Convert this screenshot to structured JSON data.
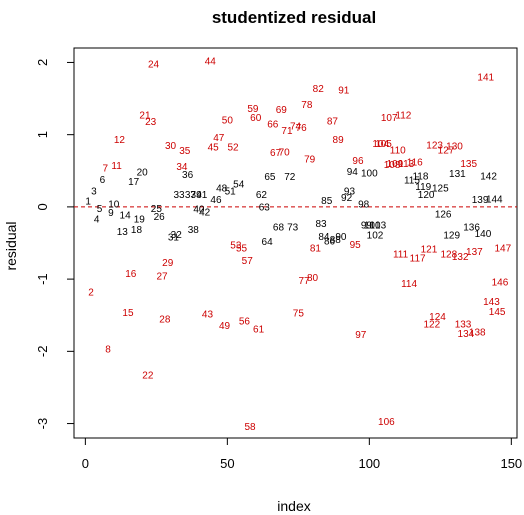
{
  "chart_data": {
    "type": "scatter",
    "title": "studentized residual",
    "xlabel": "index",
    "ylabel": "residual",
    "xlim": [
      -4,
      152
    ],
    "ylim": [
      -3.2,
      2.2
    ],
    "xticks": [
      0,
      50,
      100,
      150
    ],
    "yticks": [
      -3,
      -2,
      -1,
      0,
      1,
      2
    ],
    "grid": false,
    "reference_line": {
      "y": 0,
      "style": "dashed",
      "color": "#cc0000"
    },
    "colors": {
      "inlier": "#000000",
      "outlier": "#cc0000"
    },
    "points": [
      [
        1,
        0.08
      ],
      [
        2,
        -1.18
      ],
      [
        3,
        0.22
      ],
      [
        4,
        -0.17
      ],
      [
        5,
        -0.02
      ],
      [
        6,
        0.38
      ],
      [
        7,
        0.54
      ],
      [
        8,
        -1.97
      ],
      [
        9,
        -0.08
      ],
      [
        10,
        0.04
      ],
      [
        11,
        0.57
      ],
      [
        12,
        0.93
      ],
      [
        13,
        -0.34
      ],
      [
        14,
        -0.11
      ],
      [
        15,
        -1.46
      ],
      [
        16,
        -0.92
      ],
      [
        17,
        0.35
      ],
      [
        18,
        -0.31
      ],
      [
        19,
        -0.17
      ],
      [
        20,
        0.48
      ],
      [
        21,
        1.27
      ],
      [
        22,
        -2.33
      ],
      [
        23,
        1.18
      ],
      [
        24,
        1.98
      ],
      [
        25,
        -0.02
      ],
      [
        26,
        -0.13
      ],
      [
        27,
        -0.96
      ],
      [
        28,
        -1.55
      ],
      [
        29,
        -0.77
      ],
      [
        30,
        0.85
      ],
      [
        31,
        -0.42
      ],
      [
        32,
        -0.38
      ],
      [
        33,
        0.17
      ],
      [
        34,
        0.56
      ],
      [
        35,
        0.78
      ],
      [
        36,
        0.45
      ],
      [
        37,
        0.17
      ],
      [
        38,
        -0.31
      ],
      [
        39,
        0.17
      ],
      [
        40,
        -0.03
      ],
      [
        41,
        0.17
      ],
      [
        42,
        -0.07
      ],
      [
        43,
        -1.48
      ],
      [
        44,
        2.02
      ],
      [
        45,
        0.83
      ],
      [
        46,
        0.1
      ],
      [
        47,
        0.96
      ],
      [
        48,
        0.26
      ],
      [
        49,
        -1.64
      ],
      [
        50,
        1.2
      ],
      [
        51,
        0.22
      ],
      [
        52,
        0.83
      ],
      [
        53,
        -0.53
      ],
      [
        54,
        0.32
      ],
      [
        55,
        -0.57
      ],
      [
        56,
        -1.58
      ],
      [
        57,
        -0.74
      ],
      [
        58,
        -3.04
      ],
      [
        59,
        1.36
      ],
      [
        60,
        1.24
      ],
      [
        61,
        -1.69
      ],
      [
        62,
        0.17
      ],
      [
        63,
        0
      ],
      [
        64,
        -0.48
      ],
      [
        65,
        0.42
      ],
      [
        66,
        1.15
      ],
      [
        67,
        0.75
      ],
      [
        68,
        -0.28
      ],
      [
        69,
        1.35
      ],
      [
        70,
        0.76
      ],
      [
        71,
        1.06
      ],
      [
        72,
        0.42
      ],
      [
        73,
        -0.28
      ],
      [
        74,
        1.12
      ],
      [
        75,
        -1.47
      ],
      [
        76,
        1.1
      ],
      [
        77,
        -1.02
      ],
      [
        78,
        1.42
      ],
      [
        79,
        0.66
      ],
      [
        80,
        -0.98
      ],
      [
        81,
        -0.57
      ],
      [
        82,
        1.64
      ],
      [
        83,
        -0.23
      ],
      [
        84,
        -0.41
      ],
      [
        85,
        0.09
      ],
      [
        86,
        -0.47
      ],
      [
        87,
        1.19
      ],
      [
        88,
        -0.45
      ],
      [
        89,
        0.93
      ],
      [
        90,
        -0.41
      ],
      [
        91,
        1.62
      ],
      [
        92,
        0.13
      ],
      [
        93,
        0.22
      ],
      [
        94,
        0.49
      ],
      [
        95,
        -0.52
      ],
      [
        96,
        0.64
      ],
      [
        97,
        -1.77
      ],
      [
        98,
        0.04
      ],
      [
        99,
        -0.25
      ],
      [
        100,
        0.47
      ],
      [
        101,
        -0.25
      ],
      [
        102,
        -0.39
      ],
      [
        103,
        -0.25
      ],
      [
        104,
        0.88
      ],
      [
        105,
        0.88
      ],
      [
        106,
        -2.97
      ],
      [
        107,
        1.24
      ],
      [
        108,
        0.59
      ],
      [
        109,
        0.6
      ],
      [
        110,
        0.79
      ],
      [
        111,
        -0.65
      ],
      [
        112,
        1.27
      ],
      [
        113,
        0.6
      ],
      [
        114,
        -1.06
      ],
      [
        115,
        0.37
      ],
      [
        116,
        0.62
      ],
      [
        117,
        -0.71
      ],
      [
        118,
        0.43
      ],
      [
        119,
        0.28
      ],
      [
        120,
        0.17
      ],
      [
        121,
        -0.58
      ],
      [
        122,
        -1.62
      ],
      [
        123,
        0.86
      ],
      [
        124,
        -1.52
      ],
      [
        125,
        0.26
      ],
      [
        126,
        -0.1
      ],
      [
        127,
        0.79
      ],
      [
        128,
        -0.65
      ],
      [
        129,
        -0.39
      ],
      [
        130,
        0.84
      ],
      [
        131,
        0.46
      ],
      [
        132,
        -0.69
      ],
      [
        133,
        -1.62
      ],
      [
        134,
        -1.75
      ],
      [
        135,
        0.6
      ],
      [
        136,
        -0.28
      ],
      [
        137,
        -0.62
      ],
      [
        138,
        -1.73
      ],
      [
        139,
        0.1
      ],
      [
        140,
        -0.37
      ],
      [
        141,
        1.8
      ],
      [
        142,
        0.43
      ],
      [
        143,
        -1.31
      ],
      [
        144,
        0.11
      ],
      [
        145,
        -1.45
      ],
      [
        146,
        -1.04
      ],
      [
        147,
        -0.57
      ]
    ]
  }
}
